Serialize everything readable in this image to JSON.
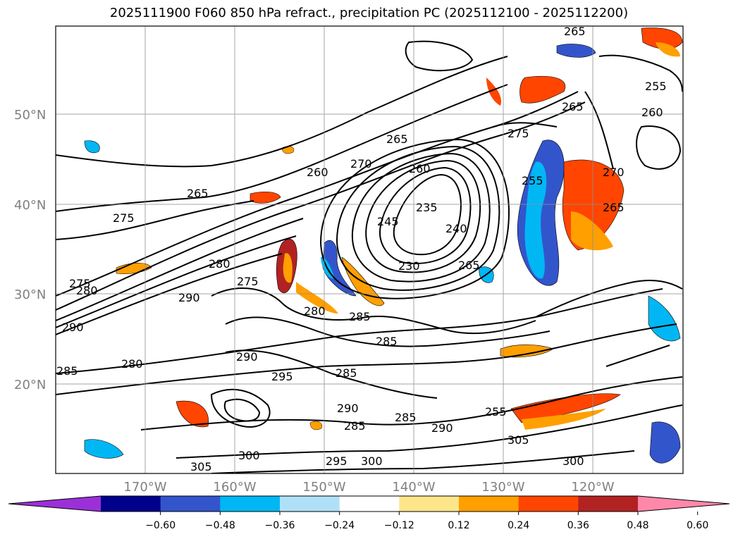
{
  "title": "2025111900 F060 850 hPa refract., precipitation PC (2025112100 - 2025112200)",
  "lat_labels": [
    "50°N",
    "40°N",
    "30°N",
    "20°N"
  ],
  "lon_labels": [
    "170°W",
    "160°W",
    "150°W",
    "140°W",
    "130°W",
    "120°W"
  ],
  "colorbar": {
    "ticks": [
      "−0.60",
      "−0.48",
      "−0.36",
      "−0.24",
      "−0.12",
      "0.12",
      "0.24",
      "0.36",
      "0.48",
      "0.60"
    ],
    "colors": [
      "#9b30d8",
      "#00008b",
      "#3355cc",
      "#00b7f4",
      "#b0e0f8",
      "#ffffff",
      "#fde68a",
      "#ff9f00",
      "#ff4500",
      "#b22222",
      "#ff88aa"
    ]
  },
  "contour_labels": [
    "265",
    "255",
    "265",
    "260",
    "270",
    "260",
    "275",
    "245",
    "235",
    "240",
    "265",
    "230",
    "255",
    "265",
    "280",
    "275",
    "285",
    "285",
    "290",
    "280",
    "290",
    "295",
    "280",
    "285",
    "290",
    "285",
    "295",
    "300",
    "285",
    "290",
    "305",
    "300",
    "300",
    "305",
    "280",
    "285",
    "275",
    "290",
    "260",
    "265",
    "275",
    "255",
    "265",
    "270"
  ],
  "colors": {
    "contour": "#000000",
    "gridline": "#909090"
  }
}
